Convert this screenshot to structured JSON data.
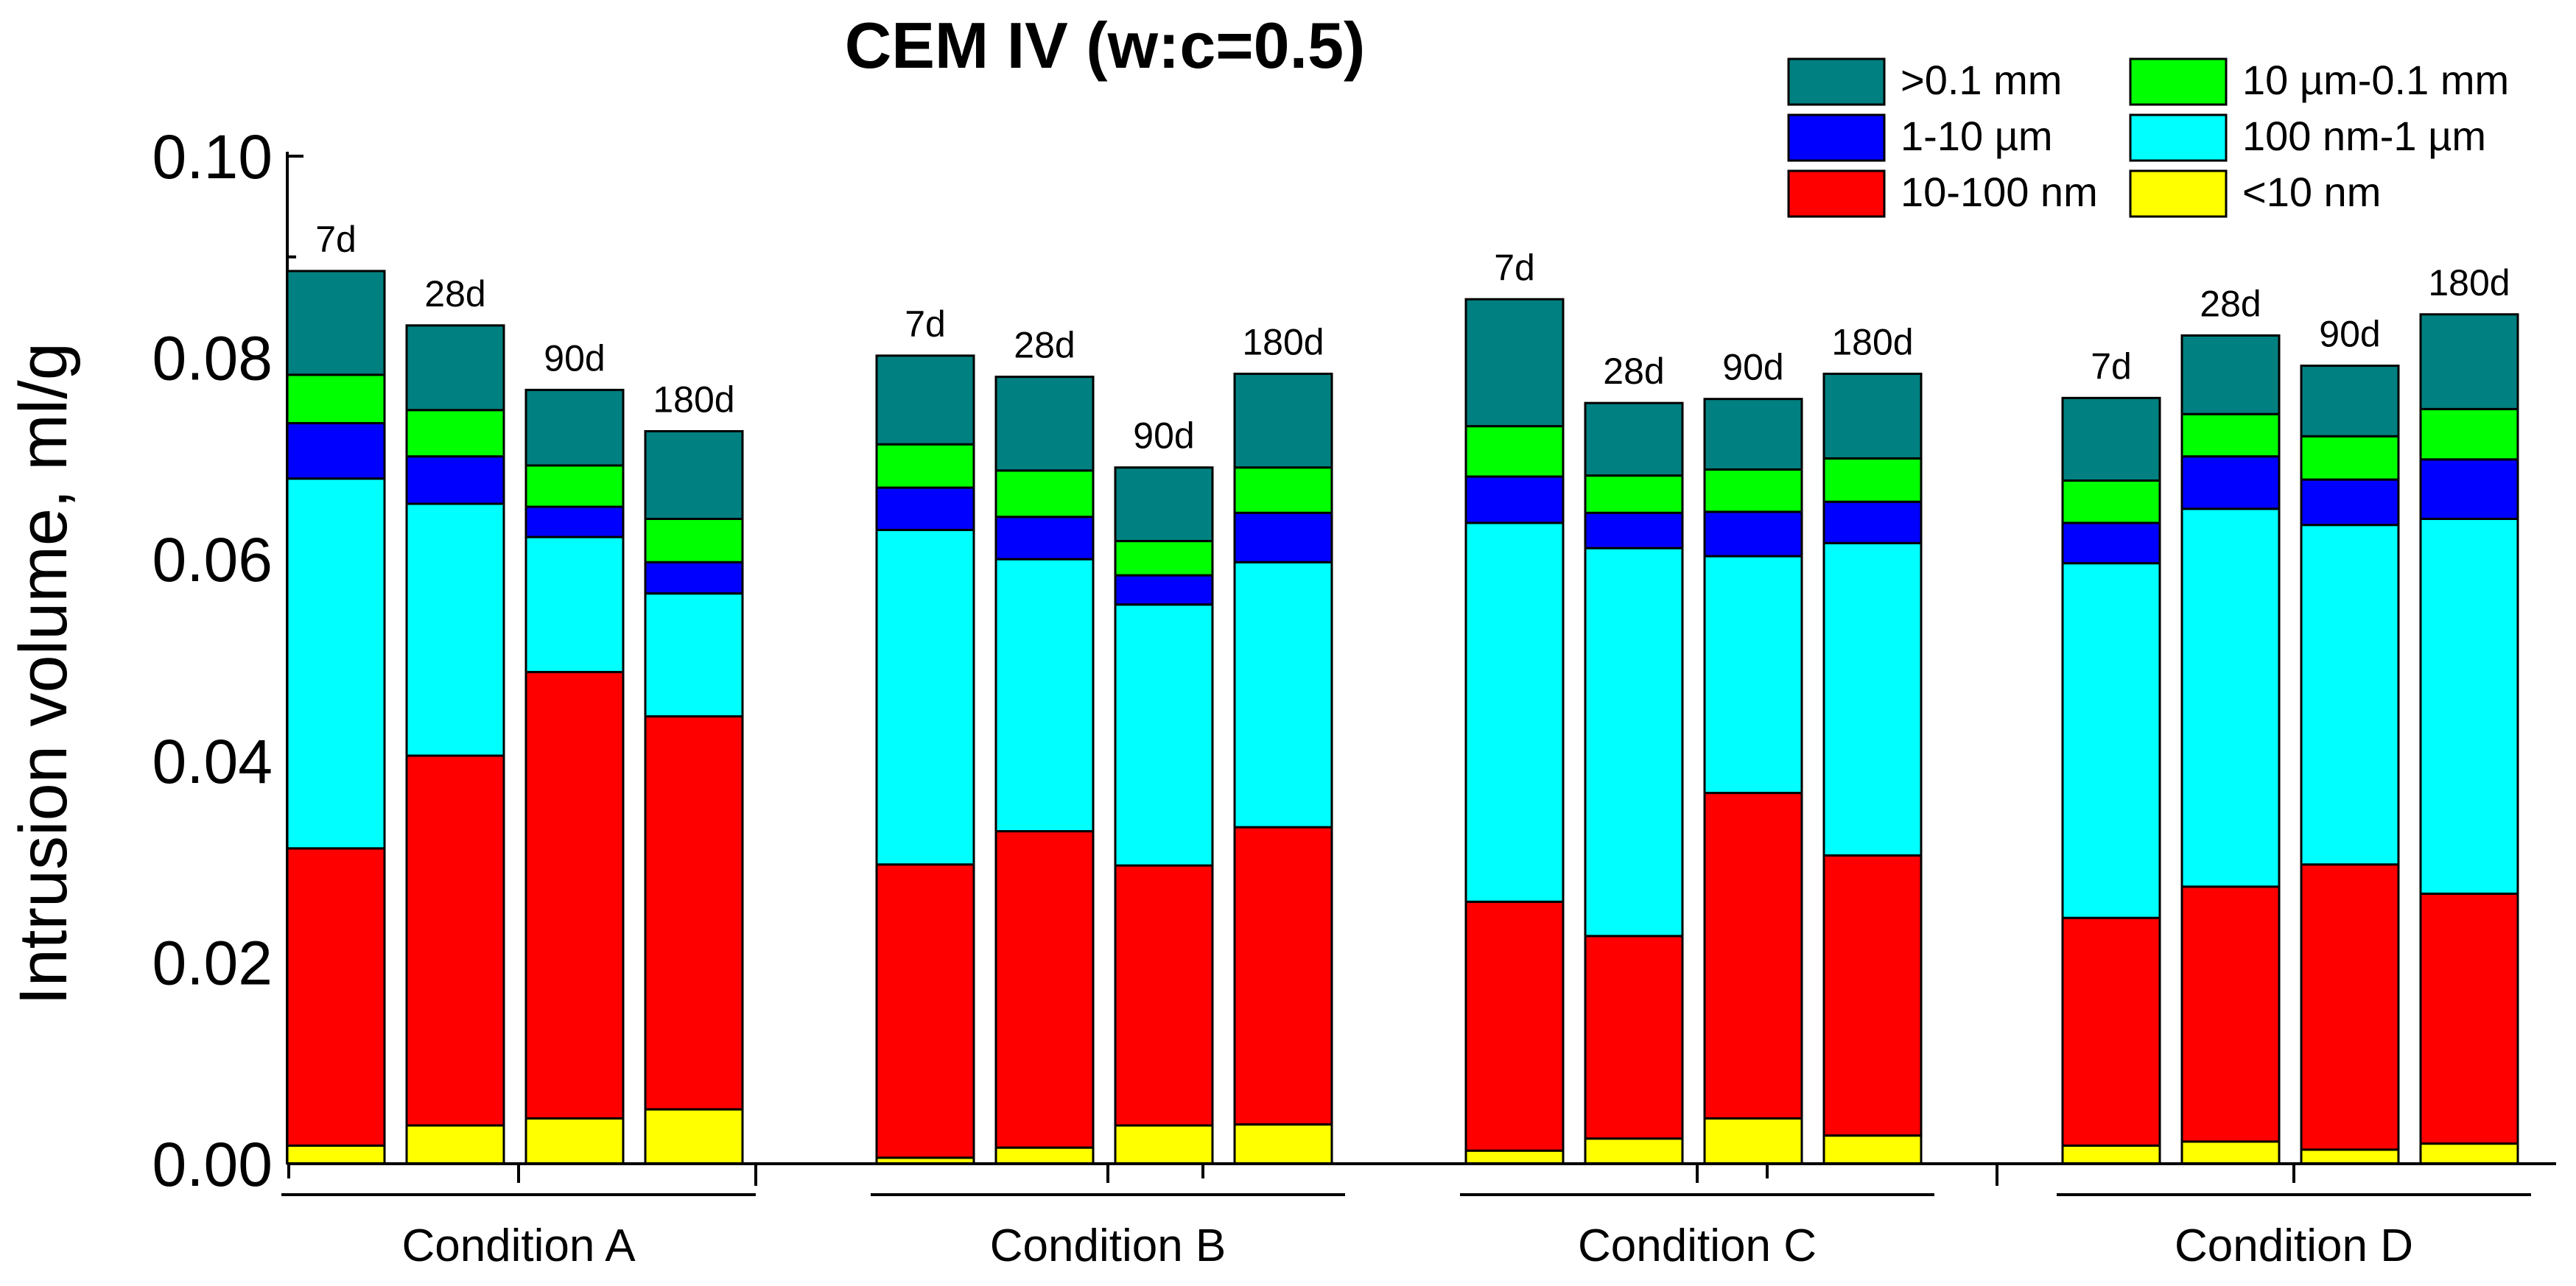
{
  "colors": {
    "gt_0_1_mm": "#008080",
    "um10_0_1mm": "#00ff00",
    "um1_10": "#0000ff",
    "nm100_1um": "#00ffff",
    "nm10_100": "#ff0000",
    "lt_10nm": "#ffff00"
  },
  "chart_data": {
    "type": "bar",
    "stacked": true,
    "title": "CEM IV (w:c=0.5)",
    "xlabel": "",
    "ylabel": "Intrusion volume, ml/g",
    "ylim": [
      0,
      0.1
    ],
    "yticks": [
      "0.00",
      "0.02",
      "0.04",
      "0.06",
      "0.08",
      "0.10"
    ],
    "grid": false,
    "legend_position": "top-right",
    "groups": [
      {
        "name": "Condition A",
        "ages": [
          "7d",
          "28d",
          "90d",
          "180d"
        ]
      },
      {
        "name": "Condition B",
        "ages": [
          "7d",
          "28d",
          "90d",
          "180d"
        ]
      },
      {
        "name": "Condition C",
        "ages": [
          "7d",
          "28d",
          "90d",
          "180d"
        ]
      },
      {
        "name": "Condition D",
        "ages": [
          "7d",
          "28d",
          "90d",
          "180d"
        ]
      }
    ],
    "series": [
      {
        "key": "lt_10nm",
        "name": "<10 nm",
        "color": "#ffff00",
        "values": [
          0.0018,
          0.0038,
          0.0045,
          0.0054,
          0.0006,
          0.0016,
          0.0038,
          0.0039,
          0.0013,
          0.0025,
          0.0045,
          0.0028,
          0.0018,
          0.0022,
          0.0014,
          0.002
        ]
      },
      {
        "key": "nm10_100",
        "name": "10-100 nm",
        "color": "#ff0000",
        "values": [
          0.0295,
          0.0367,
          0.0443,
          0.039,
          0.0291,
          0.0314,
          0.0258,
          0.0295,
          0.0247,
          0.0201,
          0.0323,
          0.0278,
          0.0226,
          0.0253,
          0.0283,
          0.0248
        ]
      },
      {
        "key": "nm100_1um",
        "name": "100 nm-1 µm",
        "color": "#00ffff",
        "values": [
          0.0367,
          0.025,
          0.0134,
          0.0122,
          0.0332,
          0.027,
          0.0259,
          0.0263,
          0.0376,
          0.0385,
          0.0235,
          0.031,
          0.0352,
          0.0375,
          0.0337,
          0.0372
        ]
      },
      {
        "key": "um1_10",
        "name": "1-10 µm",
        "color": "#0000ff",
        "values": [
          0.0055,
          0.0047,
          0.003,
          0.0031,
          0.0042,
          0.0042,
          0.0029,
          0.0049,
          0.0046,
          0.0035,
          0.0044,
          0.0041,
          0.004,
          0.0052,
          0.0045,
          0.0059
        ]
      },
      {
        "key": "um10_0_1mm",
        "name": "10 µm-0.1 mm",
        "color": "#00ff00",
        "values": [
          0.0048,
          0.0046,
          0.0041,
          0.0043,
          0.0043,
          0.0046,
          0.0034,
          0.0045,
          0.005,
          0.0037,
          0.0042,
          0.0043,
          0.0042,
          0.0042,
          0.0043,
          0.005
        ]
      },
      {
        "key": "gt_0_1_mm",
        "name": ">0.1 mm",
        "color": "#008080",
        "values": [
          0.0103,
          0.0084,
          0.0075,
          0.0087,
          0.0088,
          0.0093,
          0.0073,
          0.0093,
          0.0126,
          0.0072,
          0.007,
          0.0084,
          0.0082,
          0.0078,
          0.007,
          0.0094
        ]
      }
    ],
    "legend": [
      {
        "key": "gt_0_1_mm",
        "label": ">0.1 mm"
      },
      {
        "key": "um10_0_1mm",
        "label": "10 µm-0.1 mm"
      },
      {
        "key": "um1_10",
        "label": "1-10 µm"
      },
      {
        "key": "nm100_1um",
        "label": "100 nm-1 µm"
      },
      {
        "key": "nm10_100",
        "label": "10-100 nm"
      },
      {
        "key": "lt_10nm",
        "label": "<10 nm"
      }
    ]
  }
}
